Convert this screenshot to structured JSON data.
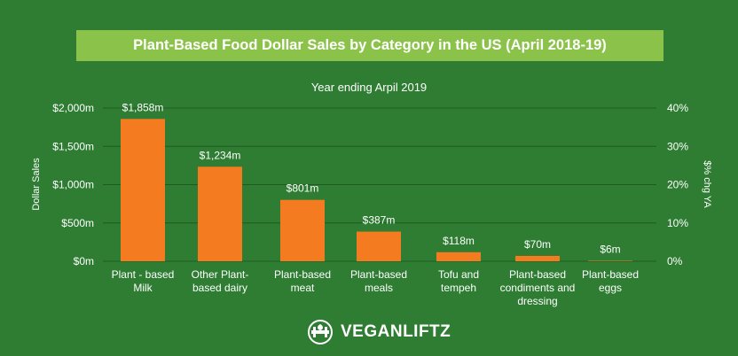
{
  "colors": {
    "background": "#2e7d32",
    "title_banner": "#8bc34a",
    "bar": "#f47b20",
    "text": "#ffffff",
    "gridline": "#1e5a22"
  },
  "logo": {
    "icon": "barbell-leaf-icon",
    "text": "VEGANLIFTZ"
  },
  "chart_data": {
    "type": "bar",
    "title": "Plant-Based Food Dollar Sales by Category in the US (April 2018-19)",
    "subtitle": "Year ending Arpil 2019",
    "ylabel": "Dollar Sales",
    "y2label": "$% chg YA",
    "ylim": [
      0,
      2000
    ],
    "y2lim": [
      0,
      40
    ],
    "yticks": [
      "$0m",
      "$500m",
      "$1,000m",
      "$1,500m",
      "$2,000m"
    ],
    "y2ticks": [
      "0%",
      "10%",
      "20%",
      "30%",
      "40%"
    ],
    "grid": true,
    "categories": [
      [
        "Plant - based",
        "Milk"
      ],
      [
        "Other Plant-",
        "based dairy"
      ],
      [
        "Plant-based",
        "meat"
      ],
      [
        "Plant-based",
        "meals"
      ],
      [
        "Tofu and",
        "tempeh"
      ],
      [
        "Plant-based",
        "condiments and",
        "dressing"
      ],
      [
        "Plant-based",
        "eggs"
      ]
    ],
    "values": [
      1858,
      1234,
      801,
      387,
      118,
      70,
      6
    ],
    "data_labels": [
      "$1,858m",
      "$1,234m",
      "$801m",
      "$387m",
      "$118m",
      "$70m",
      "$6m"
    ]
  }
}
